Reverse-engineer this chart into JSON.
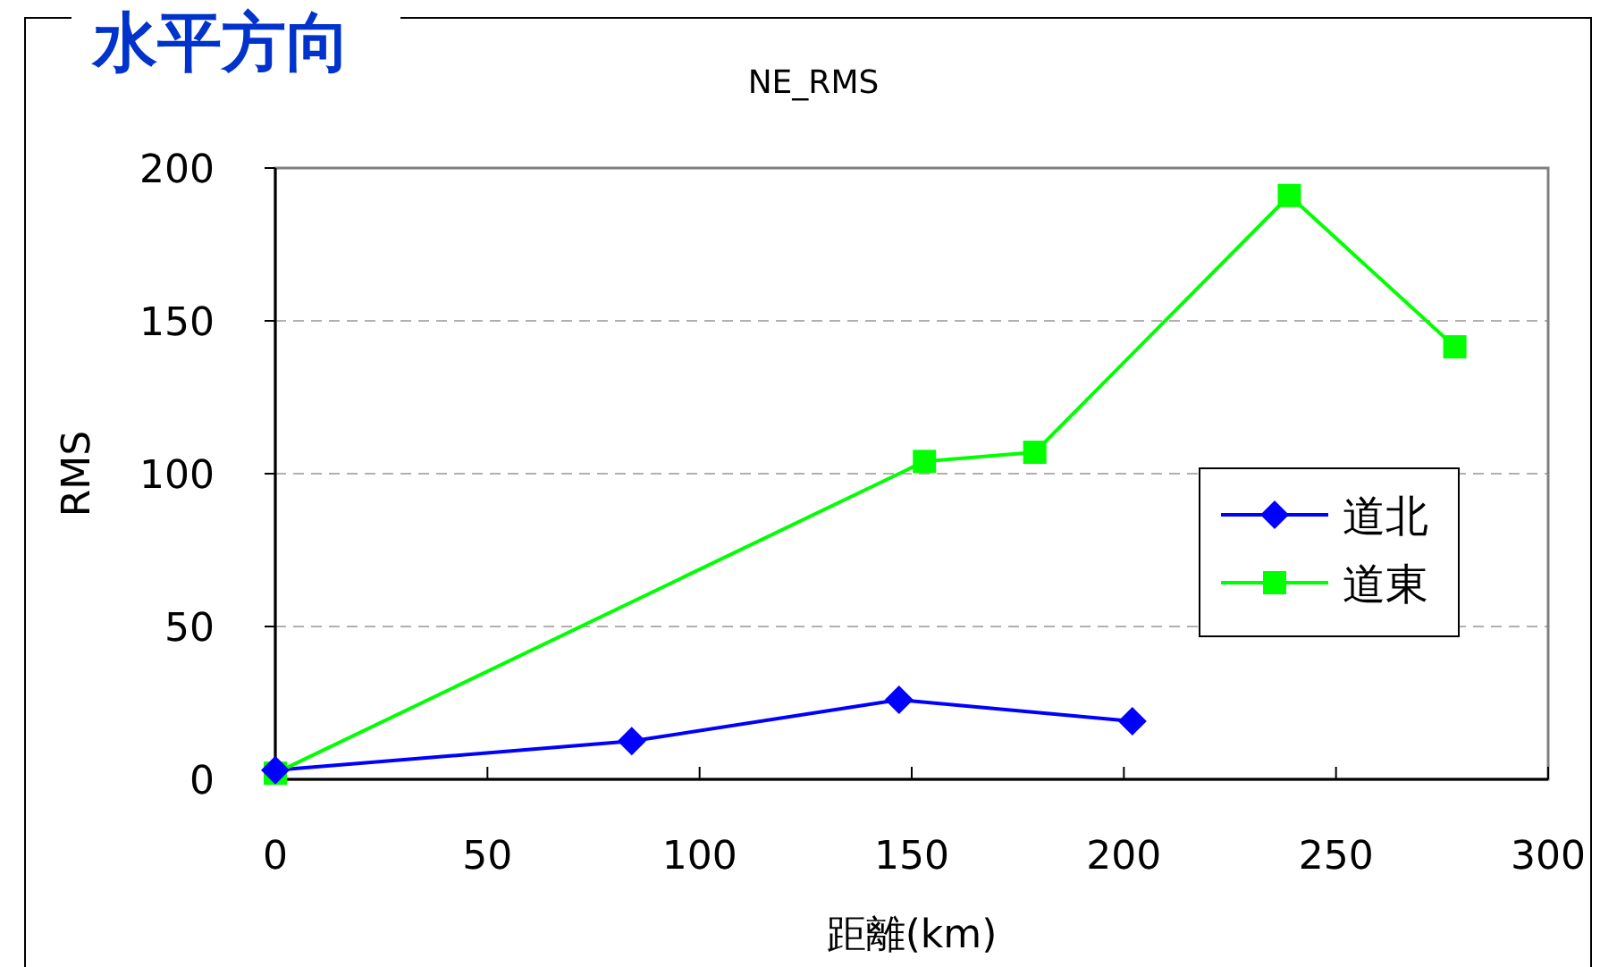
{
  "chart_data": {
    "type": "line",
    "title": "水平方向",
    "subtitle": "NE_RMS",
    "xlabel": "距離(km)",
    "ylabel": "RMS",
    "xlim": [
      0,
      300
    ],
    "ylim": [
      0,
      200
    ],
    "xticks": [
      0,
      50,
      100,
      150,
      200,
      250,
      300
    ],
    "yticks": [
      0,
      50,
      100,
      150,
      200
    ],
    "grid": "y",
    "legend": "right",
    "series": [
      {
        "name": "道北",
        "color": "#0000ff",
        "marker": "diamond",
        "x": [
          0,
          84,
          147,
          202
        ],
        "values": [
          3,
          12.5,
          26,
          19
        ]
      },
      {
        "name": "道東",
        "color": "#00ff00",
        "marker": "square",
        "x": [
          0,
          153,
          179,
          239,
          278
        ],
        "values": [
          2,
          104,
          107,
          191,
          141.5
        ]
      }
    ]
  }
}
